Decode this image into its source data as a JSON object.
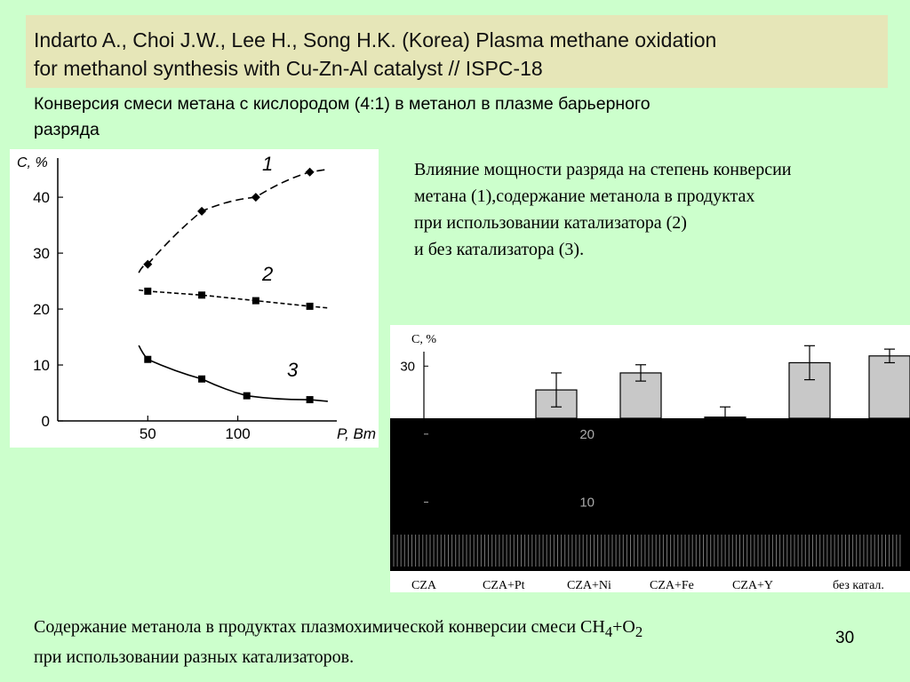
{
  "header": {
    "title_line1": "Indarto A., Choi J.W., Lee H., Song H.K. (Korea) Plasma methane oxidation",
    "title_line2": "for methanol synthesis with Cu-Zn-Al catalyst // ISPC-18"
  },
  "subtitle_line1": "Конверсия смеси метана с кислородом (4:1) в метанол в плазме барьерного",
  "subtitle_line2": "разряда",
  "description": {
    "line1": "Влияние мощности разряда на степень конверсии",
    "line2": "метана (1),содержание метанола в продуктах",
    "line3": "при использовании катализатора (2)",
    "line4": "и без катализатора (3)."
  },
  "caption": {
    "line1_prefix": "Содержание метанола в продуктах плазмохимической конверсии смеси CH",
    "sub4": "4",
    "plus_o": "+O",
    "sub2": "2",
    "line2": "при использовании разных катализаторов."
  },
  "page_number": "30",
  "colors": {
    "background": "#ccffcc",
    "title_box": "#e6e6b8",
    "bar_fill": "#c8c8c8"
  },
  "chart_data": [
    {
      "type": "line",
      "ylabel": "C, %",
      "xlabel": "P, Вт",
      "x_ticks": [
        "50",
        "100"
      ],
      "y_ticks": [
        "0",
        "10",
        "20",
        "30",
        "40"
      ],
      "xlim": [
        0,
        155
      ],
      "ylim": [
        0,
        47
      ],
      "series": [
        {
          "name": "1",
          "points": [
            [
              50,
              28
            ],
            [
              80,
              37.5
            ],
            [
              110,
              40
            ],
            [
              140,
              44.5
            ]
          ]
        },
        {
          "name": "2",
          "points": [
            [
              50,
              23.2
            ],
            [
              80,
              22.5
            ],
            [
              110,
              21.5
            ],
            [
              140,
              20.5
            ]
          ]
        },
        {
          "name": "3",
          "points": [
            [
              50,
              11
            ],
            [
              80,
              7.5
            ],
            [
              105,
              4.5
            ],
            [
              140,
              3.8
            ]
          ]
        }
      ]
    },
    {
      "type": "bar",
      "ylabel": "C, %",
      "y_ticks": [
        "10",
        "20",
        "30"
      ],
      "ylim": [
        0,
        35
      ],
      "categories": [
        "CZA",
        "CZA+Pt",
        "CZA+Ni",
        "CZA+Fe",
        "CZA+Y",
        "без катал."
      ],
      "values": [
        null,
        26.5,
        29,
        22.5,
        30.5,
        31.5
      ],
      "errors": [
        null,
        2.5,
        1.2,
        1.5,
        2.5,
        1
      ]
    }
  ]
}
